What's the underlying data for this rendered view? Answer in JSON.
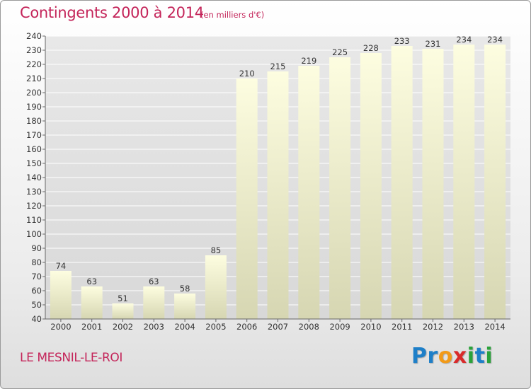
{
  "page": {
    "title": "Contingents 2000 à 2014",
    "subtitle": "(en milliers d'€)",
    "commune": "LE MESNIL-LE-ROI",
    "logo_text": "Proxiti"
  },
  "colors": {
    "title": "#c4255a",
    "bar_top": "#fdfde0",
    "bar_bottom": "#d6d6b2",
    "grid": "#ffffff",
    "plot_bg": "#dcdcdc",
    "logo_letters": [
      "#1e7fc8",
      "#1e7fc8",
      "#f29a18",
      "#d92a2a",
      "#2aa23a",
      "#1e7fc8",
      "#2aa23a"
    ]
  },
  "chart_data": {
    "type": "bar",
    "title": "Contingents 2000 à 2014",
    "subtitle": "(en milliers d'€)",
    "categories": [
      "2000",
      "2001",
      "2002",
      "2003",
      "2004",
      "2005",
      "2006",
      "2007",
      "2008",
      "2009",
      "2010",
      "2011",
      "2012",
      "2013",
      "2014"
    ],
    "values": [
      74,
      63,
      51,
      63,
      58,
      85,
      210,
      215,
      219,
      225,
      228,
      233,
      231,
      234,
      234
    ],
    "ylim": [
      40,
      240
    ],
    "yticks": [
      40,
      50,
      60,
      70,
      80,
      90,
      100,
      110,
      120,
      130,
      140,
      150,
      160,
      170,
      180,
      190,
      200,
      210,
      220,
      230,
      240
    ],
    "grid": true,
    "xlabel": "",
    "ylabel": ""
  }
}
